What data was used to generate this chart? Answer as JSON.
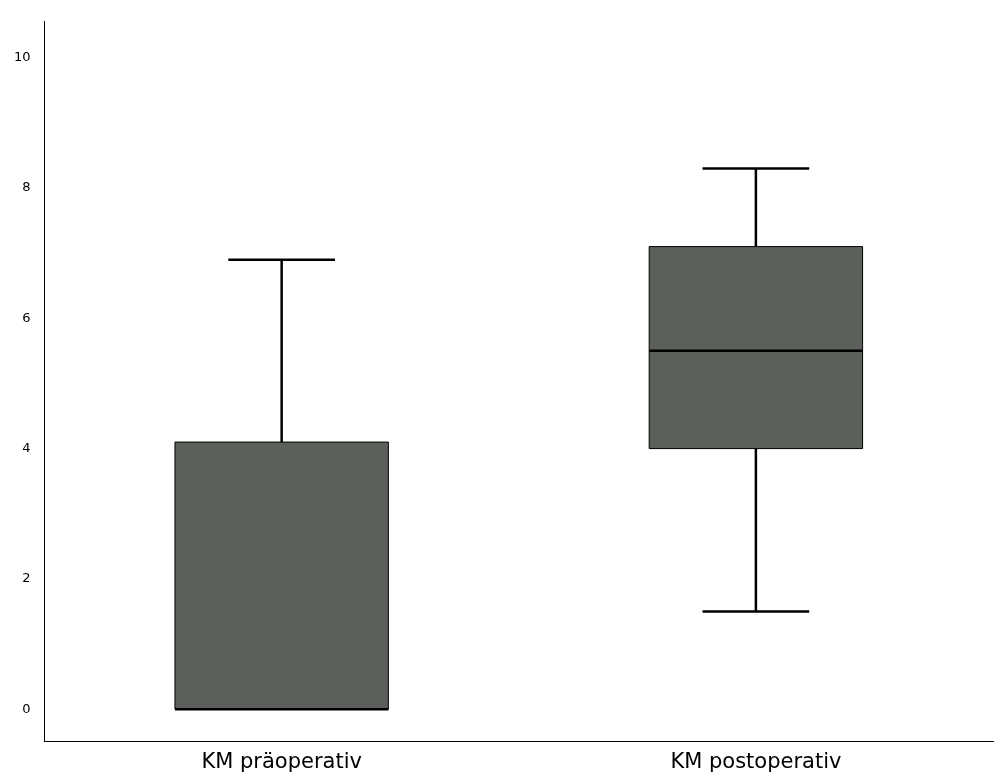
{
  "chart_data": {
    "type": "box",
    "categories": [
      "KM präoperativ",
      "KM postoperativ"
    ],
    "boxes": [
      {
        "low": 0,
        "q1": 0,
        "median": 0,
        "q3": 4.1,
        "high": 6.9
      },
      {
        "low": 1.5,
        "q1": 4.0,
        "median": 5.5,
        "q3": 7.1,
        "high": 8.3
      }
    ],
    "color": "#5c605b",
    "ylim": [
      -0.5,
      10.55
    ],
    "yticks": [
      0,
      2,
      4,
      6,
      8,
      10
    ],
    "grid": false,
    "legend": false
  }
}
